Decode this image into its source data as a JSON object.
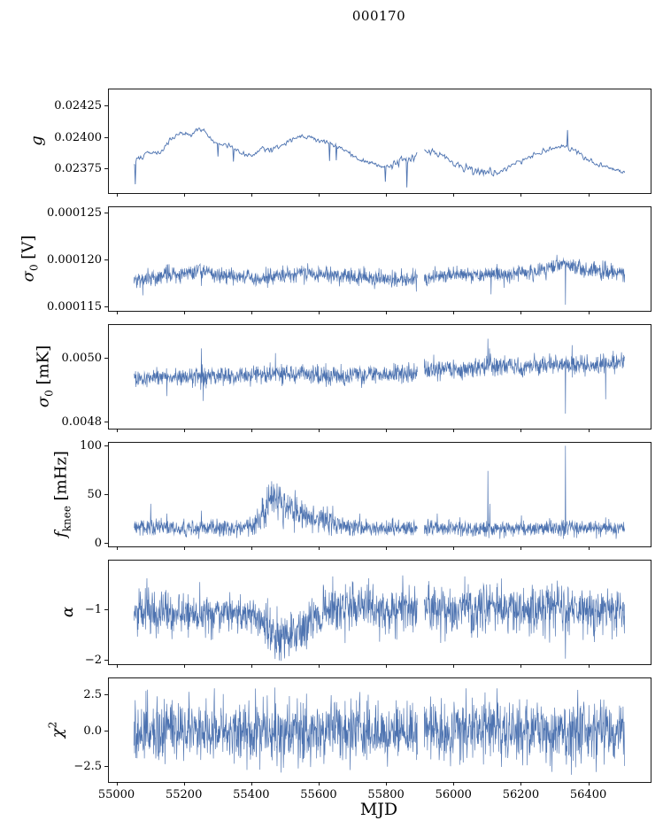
{
  "chart_data": {
    "type": "line",
    "title": "000170",
    "xlabel": "MJD",
    "line_color": "#4c72b0",
    "axis_color": "#000000",
    "xlim": [
      54975,
      56585
    ],
    "x_data_range": [
      55052,
      56508
    ],
    "xticks": [
      55000,
      55200,
      55400,
      55600,
      55800,
      56000,
      56200,
      56400
    ],
    "gaps": [
      [
        55893,
        55913
      ]
    ],
    "panels": [
      {
        "id": "g",
        "label_parts": [
          {
            "text": "g",
            "italic": true
          }
        ],
        "ylim": [
          0.023555,
          0.024385
        ],
        "yticks": [
          {
            "v": 0.02375,
            "label": "0.02375"
          },
          {
            "v": 0.024,
            "label": "0.02400"
          },
          {
            "v": 0.02425,
            "label": "0.02425"
          }
        ],
        "seed": 101,
        "points": 730,
        "line_width": 0.9,
        "smooth": true,
        "noise_sigma": 9e-06,
        "sigma_points": [
          [
            55052,
            2e-05
          ],
          [
            55075,
            1e-05
          ],
          [
            55800,
            1e-05
          ],
          [
            55840,
            2.8e-05
          ],
          [
            55880,
            2.8e-05
          ],
          [
            55915,
            1.2e-05
          ],
          [
            56050,
            2e-05
          ],
          [
            56120,
            2e-05
          ],
          [
            56160,
            1.1e-05
          ],
          [
            56508,
            1.1e-05
          ]
        ],
        "baseline": [
          [
            55052,
            0.02378
          ],
          [
            55070,
            0.02384
          ],
          [
            55100,
            0.02388
          ],
          [
            55130,
            0.02387
          ],
          [
            55160,
            0.02398
          ],
          [
            55190,
            0.02403
          ],
          [
            55220,
            0.02402
          ],
          [
            55250,
            0.02407
          ],
          [
            55270,
            0.02403
          ],
          [
            55290,
            0.02396
          ],
          [
            55320,
            0.02394
          ],
          [
            55350,
            0.02391
          ],
          [
            55380,
            0.02386
          ],
          [
            55410,
            0.02385
          ],
          [
            55430,
            0.02391
          ],
          [
            55460,
            0.0239
          ],
          [
            55490,
            0.02393
          ],
          [
            55520,
            0.02398
          ],
          [
            55550,
            0.02401
          ],
          [
            55580,
            0.02399
          ],
          [
            55610,
            0.02397
          ],
          [
            55640,
            0.02395
          ],
          [
            55670,
            0.02391
          ],
          [
            55700,
            0.02386
          ],
          [
            55730,
            0.02381
          ],
          [
            55760,
            0.02379
          ],
          [
            55790,
            0.02376
          ],
          [
            55820,
            0.02378
          ],
          [
            55850,
            0.02381
          ],
          [
            55880,
            0.02386
          ],
          [
            55910,
            0.02389
          ],
          [
            55940,
            0.02388
          ],
          [
            55970,
            0.02386
          ],
          [
            56000,
            0.0238
          ],
          [
            56030,
            0.02376
          ],
          [
            56060,
            0.02374
          ],
          [
            56090,
            0.02373
          ],
          [
            56120,
            0.02372
          ],
          [
            56150,
            0.02374
          ],
          [
            56180,
            0.02378
          ],
          [
            56210,
            0.02382
          ],
          [
            56240,
            0.02386
          ],
          [
            56270,
            0.02389
          ],
          [
            56300,
            0.02391
          ],
          [
            56330,
            0.02393
          ],
          [
            56360,
            0.0239
          ],
          [
            56390,
            0.02384
          ],
          [
            56420,
            0.02379
          ],
          [
            56450,
            0.02377
          ],
          [
            56480,
            0.02374
          ],
          [
            56508,
            0.02371
          ]
        ],
        "spikes": [
          [
            55056,
            0.023625
          ],
          [
            55302,
            0.023845
          ],
          [
            55348,
            0.023805
          ],
          [
            55632,
            0.02381
          ],
          [
            55652,
            0.023815
          ],
          [
            55797,
            0.023645
          ],
          [
            55861,
            0.0236
          ],
          [
            56338,
            0.024055
          ]
        ]
      },
      {
        "id": "sigma0-v",
        "label_parts": [
          {
            "text": "σ",
            "italic": true
          },
          {
            "text": "0",
            "script": "sub"
          },
          {
            "text": " [V]"
          }
        ],
        "ylim": [
          0.00011455,
          0.00012565
        ],
        "yticks": [
          {
            "v": 0.000115,
            "label": "0.000115"
          },
          {
            "v": 0.00012,
            "label": "0.000120"
          },
          {
            "v": 0.000125,
            "label": "0.000125"
          }
        ],
        "seed": 102,
        "points": 1550,
        "line_width": 0.65,
        "noise_sigma": 4.2e-07,
        "baseline": [
          [
            55052,
            0.0001178
          ],
          [
            55100,
            0.000118
          ],
          [
            55150,
            0.0001183
          ],
          [
            55200,
            0.0001185
          ],
          [
            55250,
            0.0001188
          ],
          [
            55280,
            0.0001185
          ],
          [
            55330,
            0.0001183
          ],
          [
            55395,
            0.0001182
          ],
          [
            55405,
            0.0001178
          ],
          [
            55450,
            0.0001181
          ],
          [
            55500,
            0.0001184
          ],
          [
            55560,
            0.0001185
          ],
          [
            55620,
            0.0001184
          ],
          [
            55680,
            0.0001183
          ],
          [
            55740,
            0.0001181
          ],
          [
            55800,
            0.0001179
          ],
          [
            55860,
            0.0001179
          ],
          [
            55920,
            0.000118
          ],
          [
            55980,
            0.0001183
          ],
          [
            56040,
            0.0001184
          ],
          [
            56100,
            0.0001183
          ],
          [
            56160,
            0.0001184
          ],
          [
            56220,
            0.0001186
          ],
          [
            56280,
            0.000119
          ],
          [
            56330,
            0.0001196
          ],
          [
            56360,
            0.0001193
          ],
          [
            56400,
            0.0001189
          ],
          [
            56450,
            0.0001187
          ],
          [
            56508,
            0.0001186
          ]
        ],
        "spikes": [
          [
            55078,
            0.0001162
          ],
          [
            55252,
            0.0001172
          ],
          [
            55448,
            0.000117
          ],
          [
            55890,
            0.0001166
          ],
          [
            56112,
            0.0001163
          ],
          [
            56150,
            0.000117
          ],
          [
            56332,
            0.0001152
          ]
        ]
      },
      {
        "id": "sigma0-mk",
        "label_parts": [
          {
            "text": "σ",
            "italic": true
          },
          {
            "text": "0",
            "script": "sub"
          },
          {
            "text": " [mK]"
          }
        ],
        "ylim": [
          0.004778,
          0.005106
        ],
        "yticks": [
          {
            "v": 0.0048,
            "label": "0.0048"
          },
          {
            "v": 0.005,
            "label": "0.0050"
          }
        ],
        "seed": 103,
        "points": 1550,
        "line_width": 0.65,
        "noise_sigma": 1.3e-05,
        "sigma_points": [
          [
            55052,
            1.3e-05
          ],
          [
            55230,
            1.3e-05
          ],
          [
            55250,
            2e-05
          ],
          [
            55270,
            1.3e-05
          ],
          [
            56080,
            1.6e-05
          ],
          [
            56120,
            1.6e-05
          ],
          [
            56508,
            1.4e-05
          ]
        ],
        "baseline": [
          [
            55052,
            0.00493
          ],
          [
            55120,
            0.00494
          ],
          [
            55200,
            0.00494
          ],
          [
            55260,
            0.004945
          ],
          [
            55320,
            0.00494
          ],
          [
            55400,
            0.004945
          ],
          [
            55470,
            0.00495
          ],
          [
            55540,
            0.00495
          ],
          [
            55600,
            0.004945
          ],
          [
            55660,
            0.00494
          ],
          [
            55720,
            0.004945
          ],
          [
            55780,
            0.00495
          ],
          [
            55840,
            0.00495
          ],
          [
            55900,
            0.004955
          ],
          [
            55960,
            0.00496
          ],
          [
            56020,
            0.004965
          ],
          [
            56080,
            0.004975
          ],
          [
            56120,
            0.00498
          ],
          [
            56180,
            0.00497
          ],
          [
            56240,
            0.004975
          ],
          [
            56300,
            0.00498
          ],
          [
            56360,
            0.00498
          ],
          [
            56420,
            0.00498
          ],
          [
            56470,
            0.004985
          ],
          [
            56508,
            0.00499
          ]
        ],
        "spikes": [
          [
            55150,
            0.00488
          ],
          [
            55252,
            0.00503
          ],
          [
            55258,
            0.004865
          ],
          [
            55472,
            0.005015
          ],
          [
            55942,
            0.00501
          ],
          [
            56102,
            0.00506
          ],
          [
            56107,
            0.00503
          ],
          [
            56332,
            0.004825
          ],
          [
            56352,
            0.00504
          ],
          [
            56452,
            0.00487
          ]
        ]
      },
      {
        "id": "fknee",
        "label_parts": [
          {
            "text": "f",
            "italic": true
          },
          {
            "text": "knee",
            "script": "sub"
          },
          {
            "text": " [mHz]"
          }
        ],
        "ylim": [
          -4,
          104
        ],
        "yticks": [
          {
            "v": 0,
            "label": "0"
          },
          {
            "v": 50,
            "label": "50"
          },
          {
            "v": 100,
            "label": "100"
          }
        ],
        "seed": 104,
        "points": 1550,
        "line_width": 0.65,
        "noise_sigma": 4,
        "clip": [
          2,
          102
        ],
        "sigma_points": [
          [
            55052,
            4
          ],
          [
            55380,
            4
          ],
          [
            55430,
            9
          ],
          [
            55470,
            11
          ],
          [
            55520,
            9
          ],
          [
            55570,
            7
          ],
          [
            55620,
            7
          ],
          [
            55670,
            5
          ],
          [
            55720,
            4
          ],
          [
            56508,
            4
          ]
        ],
        "baseline": [
          [
            55052,
            15
          ],
          [
            55380,
            15
          ],
          [
            55420,
            22
          ],
          [
            55440,
            35
          ],
          [
            55465,
            46
          ],
          [
            55490,
            42
          ],
          [
            55520,
            36
          ],
          [
            55550,
            30
          ],
          [
            55580,
            24
          ],
          [
            55610,
            25
          ],
          [
            55640,
            21
          ],
          [
            55670,
            18
          ],
          [
            55700,
            16
          ],
          [
            55750,
            15
          ],
          [
            56508,
            15
          ]
        ],
        "spikes": [
          [
            55102,
            40
          ],
          [
            55150,
            30
          ],
          [
            55252,
            33
          ],
          [
            55722,
            30
          ],
          [
            55952,
            30
          ],
          [
            56102,
            74
          ],
          [
            56108,
            40
          ],
          [
            56202,
            28
          ],
          [
            56332,
            100
          ],
          [
            56452,
            26
          ]
        ]
      },
      {
        "id": "alpha",
        "label_parts": [
          {
            "text": "α",
            "italic": true
          }
        ],
        "ylim": [
          -2.09,
          -0.03
        ],
        "yticks": [
          {
            "v": -2,
            "label": "−2"
          },
          {
            "v": -1,
            "label": "−1"
          }
        ],
        "seed": 105,
        "points": 1550,
        "line_width": 0.65,
        "noise_sigma": 0.24,
        "clip": [
          -2.05,
          -0.22
        ],
        "sigma_points": [
          [
            55052,
            0.24
          ],
          [
            55290,
            0.2
          ],
          [
            55330,
            0.15
          ],
          [
            55410,
            0.16
          ],
          [
            55440,
            0.24
          ],
          [
            55540,
            0.24
          ],
          [
            55580,
            0.22
          ],
          [
            55620,
            0.24
          ],
          [
            56508,
            0.24
          ]
        ],
        "baseline": [
          [
            55052,
            -1.05
          ],
          [
            55280,
            -1.05
          ],
          [
            55320,
            -1.08
          ],
          [
            55380,
            -1.12
          ],
          [
            55420,
            -1.18
          ],
          [
            55450,
            -1.42
          ],
          [
            55480,
            -1.55
          ],
          [
            55520,
            -1.52
          ],
          [
            55560,
            -1.38
          ],
          [
            55590,
            -1.15
          ],
          [
            55620,
            -1.05
          ],
          [
            55680,
            -1.0
          ],
          [
            56508,
            -1.0
          ]
        ],
        "spikes": [
          [
            56332,
            -1.98
          ]
        ]
      },
      {
        "id": "chi2",
        "label_parts": [
          {
            "text": "χ",
            "italic": true
          },
          {
            "text": "2",
            "script": "sup"
          }
        ],
        "ylim": [
          -3.6,
          3.7
        ],
        "yticks": [
          {
            "v": -2.5,
            "label": "−2.5"
          },
          {
            "v": 0,
            "label": "0.0"
          },
          {
            "v": 2.5,
            "label": "2.5"
          }
        ],
        "seed": 106,
        "points": 1550,
        "line_width": 0.65,
        "noise_sigma": 1.05,
        "clip": [
          -3.25,
          3.3
        ],
        "baseline": [
          [
            55052,
            0
          ],
          [
            56508,
            0
          ]
        ],
        "spikes": [
          [
            55470,
            3.0
          ],
          [
            56350,
            -3.1
          ]
        ]
      }
    ]
  }
}
